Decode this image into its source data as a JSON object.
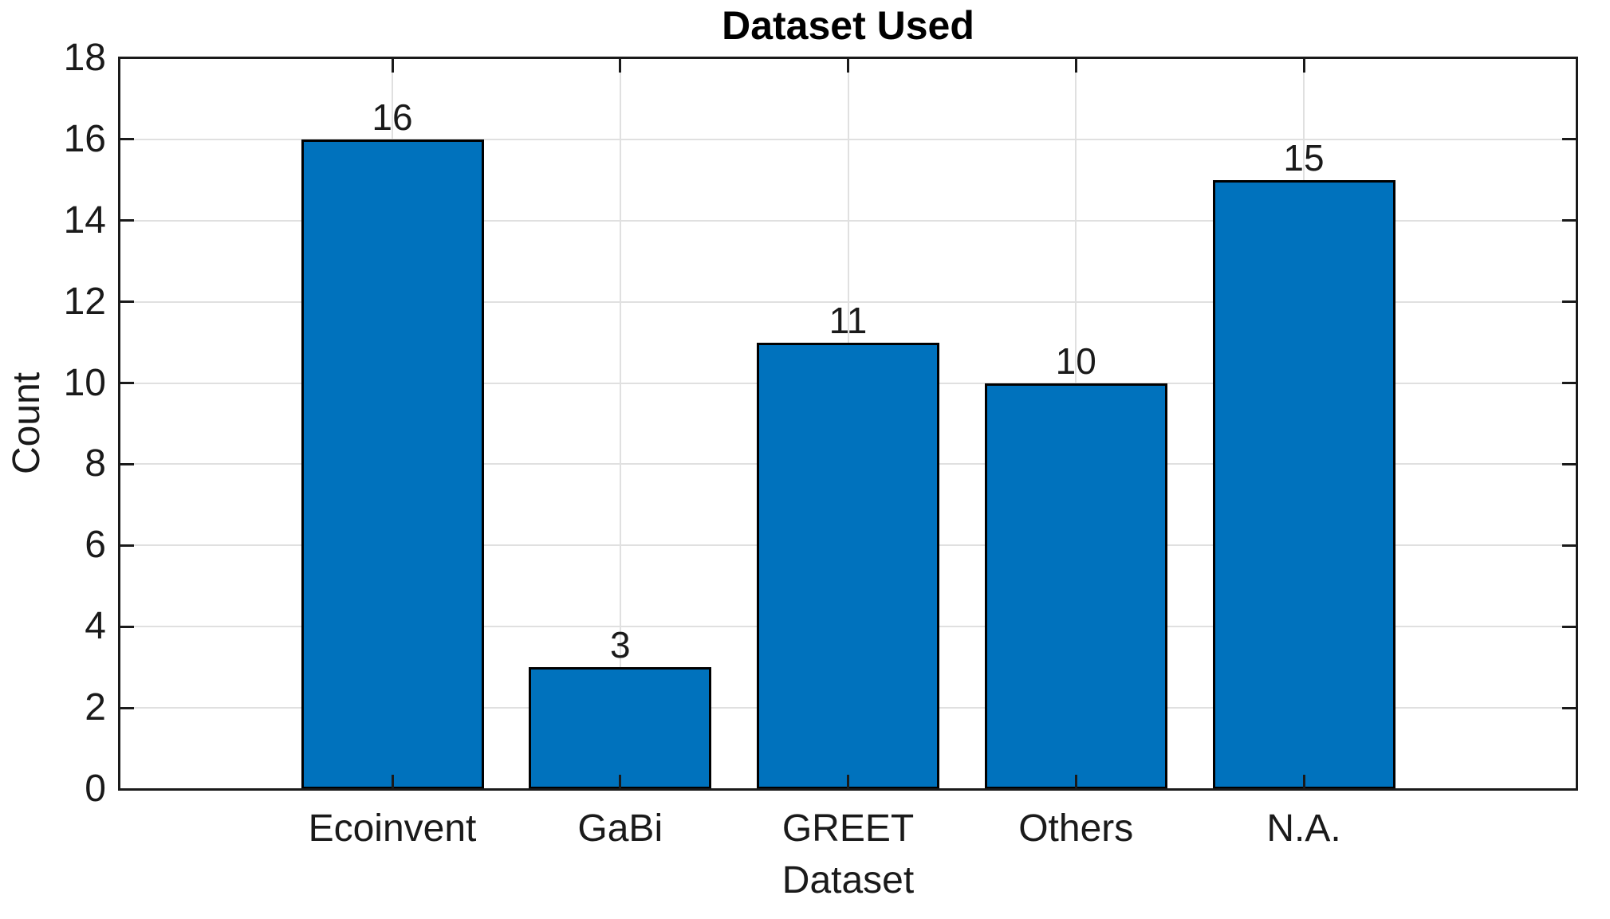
{
  "figure": {
    "background_color": "#ffffff"
  },
  "chart_data": {
    "type": "bar",
    "title": "Dataset Used",
    "xlabel": "Dataset",
    "ylabel": "Count",
    "categories": [
      "Ecoinvent",
      "GaBi",
      "GREET",
      "Others",
      "N.A."
    ],
    "values": [
      16,
      3,
      11,
      10,
      15
    ],
    "ylim": [
      0,
      18
    ],
    "yticks": [
      0,
      2,
      4,
      6,
      8,
      10,
      12,
      14,
      16,
      18
    ],
    "grid": "on",
    "legend": "none",
    "bar_color": "#0072BD",
    "bar_edge_color": "#000000",
    "axis_color": "#1a1a1a",
    "grid_color": "#e0e0e0",
    "text_color": "#1a1a1a",
    "title_color": "#000000"
  }
}
